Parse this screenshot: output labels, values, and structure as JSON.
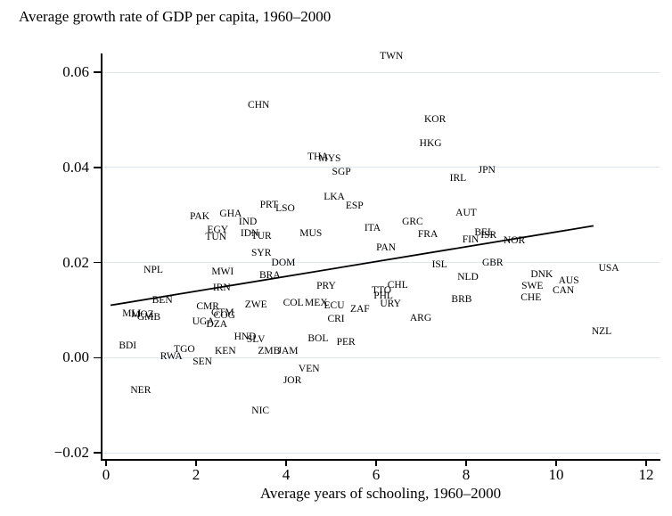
{
  "colors": {
    "background": "#ffffff",
    "gridline": "#dde7f0",
    "axis": "#000000",
    "text": "#000000",
    "trend": "#000000"
  },
  "chart_data": {
    "type": "scatter",
    "title": "Average growth rate of GDP per capita, 1960–2000",
    "xlabel": "Average years of schooling, 1960–2000",
    "ylabel": "",
    "marker": "country-code-text-label",
    "grid": true,
    "legend": "none",
    "xlim": [
      -0.12,
      12.3
    ],
    "ylim": [
      -0.022,
      0.064
    ],
    "x_ticks": [
      {
        "v": 0,
        "label": "0"
      },
      {
        "v": 2,
        "label": "2"
      },
      {
        "v": 4,
        "label": "4"
      },
      {
        "v": 6,
        "label": "6"
      },
      {
        "v": 8,
        "label": "8"
      },
      {
        "v": 10,
        "label": "10"
      },
      {
        "v": 12,
        "label": "12"
      }
    ],
    "y_ticks": [
      {
        "v": 0.06,
        "label": "0.06"
      },
      {
        "v": 0.04,
        "label": "0.04"
      },
      {
        "v": 0.02,
        "label": "0.02"
      },
      {
        "v": 0.0,
        "label": "0.00"
      },
      {
        "v": -0.02,
        "label": "−0.02"
      }
    ],
    "trendline": {
      "x1": 0.1,
      "y1": 0.011,
      "x2": 10.83,
      "y2": 0.0277
    },
    "points": [
      {
        "label": "TWN",
        "x": 6.34,
        "y": 0.0634
      },
      {
        "label": "CHN",
        "x": 3.39,
        "y": 0.053
      },
      {
        "label": "KOR",
        "x": 7.31,
        "y": 0.0501
      },
      {
        "label": "HKG",
        "x": 7.21,
        "y": 0.0451
      },
      {
        "label": "JPN",
        "x": 8.46,
        "y": 0.0394
      },
      {
        "label": "IRL",
        "x": 7.82,
        "y": 0.0377
      },
      {
        "label": "THA",
        "x": 4.71,
        "y": 0.0422
      },
      {
        "label": "MYS",
        "x": 4.97,
        "y": 0.0418
      },
      {
        "label": "SGP",
        "x": 5.23,
        "y": 0.039
      },
      {
        "label": "LKA",
        "x": 5.07,
        "y": 0.0338
      },
      {
        "label": "ESP",
        "x": 5.52,
        "y": 0.0319
      },
      {
        "label": "PRT",
        "x": 3.62,
        "y": 0.0321
      },
      {
        "label": "LSO",
        "x": 3.98,
        "y": 0.0313
      },
      {
        "label": "GHA",
        "x": 2.77,
        "y": 0.0302
      },
      {
        "label": "PAK",
        "x": 2.08,
        "y": 0.0296
      },
      {
        "label": "IND",
        "x": 3.15,
        "y": 0.0285
      },
      {
        "label": "EGY",
        "x": 2.48,
        "y": 0.0268
      },
      {
        "label": "TUN",
        "x": 2.44,
        "y": 0.0253
      },
      {
        "label": "IDN",
        "x": 3.19,
        "y": 0.0261
      },
      {
        "label": "TUR",
        "x": 3.45,
        "y": 0.0255
      },
      {
        "label": "MUS",
        "x": 4.55,
        "y": 0.0261
      },
      {
        "label": "ITA",
        "x": 5.92,
        "y": 0.0272
      },
      {
        "label": "GRC",
        "x": 6.81,
        "y": 0.0285
      },
      {
        "label": "FRA",
        "x": 7.15,
        "y": 0.0259
      },
      {
        "label": "AUT",
        "x": 8.0,
        "y": 0.0304
      },
      {
        "label": "BEL",
        "x": 8.4,
        "y": 0.0263
      },
      {
        "label": "ISR",
        "x": 8.5,
        "y": 0.0257
      },
      {
        "label": "FIN",
        "x": 8.1,
        "y": 0.0248
      },
      {
        "label": "NOR",
        "x": 9.07,
        "y": 0.0246
      },
      {
        "label": "PAN",
        "x": 6.22,
        "y": 0.0231
      },
      {
        "label": "SYR",
        "x": 3.45,
        "y": 0.0219
      },
      {
        "label": "DOM",
        "x": 3.94,
        "y": 0.0199
      },
      {
        "label": "NPL",
        "x": 1.05,
        "y": 0.0184
      },
      {
        "label": "MWI",
        "x": 2.59,
        "y": 0.018
      },
      {
        "label": "BRA",
        "x": 3.64,
        "y": 0.0173
      },
      {
        "label": "GBR",
        "x": 8.59,
        "y": 0.0199
      },
      {
        "label": "ISL",
        "x": 7.41,
        "y": 0.0195
      },
      {
        "label": "USA",
        "x": 11.17,
        "y": 0.0188
      },
      {
        "label": "NLD",
        "x": 8.04,
        "y": 0.0169
      },
      {
        "label": "DNK",
        "x": 9.68,
        "y": 0.0175
      },
      {
        "label": "SWE",
        "x": 9.47,
        "y": 0.015
      },
      {
        "label": "AUS",
        "x": 10.28,
        "y": 0.0162
      },
      {
        "label": "CAN",
        "x": 10.16,
        "y": 0.0141
      },
      {
        "label": "CHE",
        "x": 9.44,
        "y": 0.0126
      },
      {
        "label": "BRB",
        "x": 7.9,
        "y": 0.0122
      },
      {
        "label": "IRN",
        "x": 2.57,
        "y": 0.0147
      },
      {
        "label": "BEN",
        "x": 1.25,
        "y": 0.012
      },
      {
        "label": "PRY",
        "x": 4.89,
        "y": 0.015
      },
      {
        "label": "CHL",
        "x": 6.48,
        "y": 0.0152
      },
      {
        "label": "TTO",
        "x": 6.12,
        "y": 0.0141
      },
      {
        "label": "PHL",
        "x": 6.16,
        "y": 0.013
      },
      {
        "label": "URY",
        "x": 6.32,
        "y": 0.0113
      },
      {
        "label": "COL",
        "x": 4.16,
        "y": 0.0115
      },
      {
        "label": "MEX",
        "x": 4.67,
        "y": 0.0115
      },
      {
        "label": "ECU",
        "x": 5.07,
        "y": 0.0109
      },
      {
        "label": "ZAF",
        "x": 5.64,
        "y": 0.0102
      },
      {
        "label": "CRI",
        "x": 5.11,
        "y": 0.0081
      },
      {
        "label": "ARG",
        "x": 6.99,
        "y": 0.0083
      },
      {
        "label": "ZWE",
        "x": 3.33,
        "y": 0.0111
      },
      {
        "label": "CMR",
        "x": 2.26,
        "y": 0.0107
      },
      {
        "label": "GTM",
        "x": 2.59,
        "y": 0.0094
      },
      {
        "label": "COG",
        "x": 2.63,
        "y": 0.0089
      },
      {
        "label": "UGA",
        "x": 2.16,
        "y": 0.0075
      },
      {
        "label": "DZA",
        "x": 2.46,
        "y": 0.007
      },
      {
        "label": "MLI",
        "x": 0.57,
        "y": 0.0092
      },
      {
        "label": "MOZ",
        "x": 0.81,
        "y": 0.009
      },
      {
        "label": "GMB",
        "x": 0.95,
        "y": 0.0085
      },
      {
        "label": "HND",
        "x": 3.09,
        "y": 0.0044
      },
      {
        "label": "SLV",
        "x": 3.33,
        "y": 0.0038
      },
      {
        "label": "BOL",
        "x": 4.71,
        "y": 0.004
      },
      {
        "label": "PER",
        "x": 5.33,
        "y": 0.0032
      },
      {
        "label": "BDI",
        "x": 0.48,
        "y": 0.0025
      },
      {
        "label": "RWA",
        "x": 1.45,
        "y": 0.0002
      },
      {
        "label": "TGO",
        "x": 1.74,
        "y": 0.0017
      },
      {
        "label": "KEN",
        "x": 2.65,
        "y": 0.0014
      },
      {
        "label": "ZMB",
        "x": 3.62,
        "y": 0.0014
      },
      {
        "label": "JAM",
        "x": 4.04,
        "y": 0.0014
      },
      {
        "label": "SEN",
        "x": 2.14,
        "y": -0.0009
      },
      {
        "label": "VEN",
        "x": 4.51,
        "y": -0.0024
      },
      {
        "label": "JOR",
        "x": 4.14,
        "y": -0.0048
      },
      {
        "label": "NER",
        "x": 0.77,
        "y": -0.0069
      },
      {
        "label": "NIC",
        "x": 3.43,
        "y": -0.0112
      },
      {
        "label": "NZL",
        "x": 11.01,
        "y": 0.0055
      }
    ]
  }
}
